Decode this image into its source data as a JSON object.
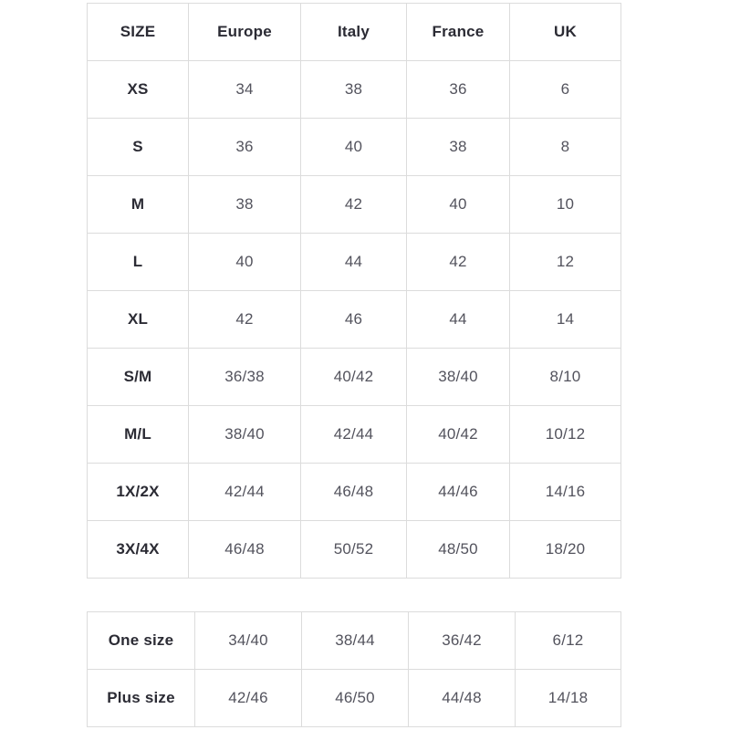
{
  "colors": {
    "background": "#ffffff",
    "border": "#dcdcdc",
    "label_text": "#2b2b34",
    "value_text": "#53535d"
  },
  "size_table": {
    "columns": [
      "SIZE",
      "Europe",
      "Italy",
      "France",
      "UK"
    ],
    "rows": [
      [
        "XS",
        "34",
        "38",
        "36",
        "6"
      ],
      [
        "S",
        "36",
        "40",
        "38",
        "8"
      ],
      [
        "M",
        "38",
        "42",
        "40",
        "10"
      ],
      [
        "L",
        "40",
        "44",
        "42",
        "12"
      ],
      [
        "XL",
        "42",
        "46",
        "44",
        "14"
      ],
      [
        "S/M",
        "36/38",
        "40/42",
        "38/40",
        "8/10"
      ],
      [
        "M/L",
        "38/40",
        "42/44",
        "40/42",
        "10/12"
      ],
      [
        "1X/2X",
        "42/44",
        "46/48",
        "44/46",
        "14/16"
      ],
      [
        "3X/4X",
        "46/48",
        "50/52",
        "48/50",
        "18/20"
      ]
    ]
  },
  "special_table": {
    "rows": [
      [
        "One size",
        "34/40",
        "38/44",
        "36/42",
        "6/12"
      ],
      [
        "Plus size",
        "42/46",
        "46/50",
        "44/48",
        "14/18"
      ]
    ]
  }
}
